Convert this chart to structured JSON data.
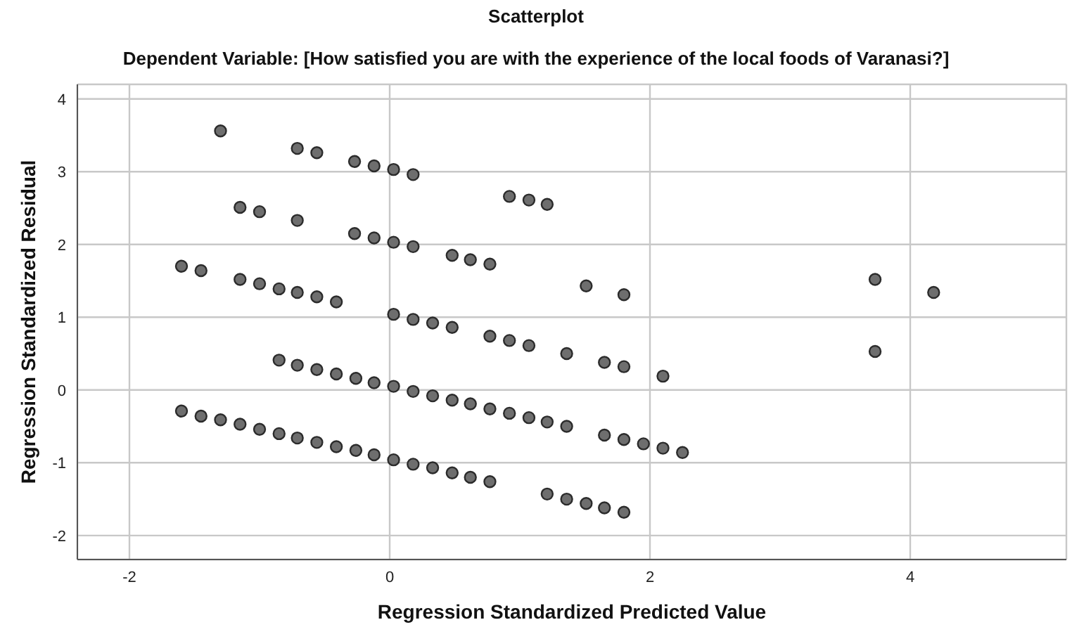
{
  "chart_data": {
    "type": "scatter",
    "title": "Scatterplot",
    "subtitle": "Dependent Variable: [How satisfied you are with the experience of the local foods of Varanasi?]",
    "xlabel": "Regression Standardized Predicted Value",
    "ylabel": "Regression Standardized Residual",
    "xlim": [
      -2.4,
      5.2
    ],
    "ylim": [
      -2.33,
      4.2
    ],
    "xticks": [
      -2,
      0,
      2,
      4
    ],
    "yticks": [
      -2,
      -1,
      0,
      1,
      2,
      3,
      4
    ],
    "grid": true,
    "legend": false,
    "marker": "circle",
    "series": [
      {
        "color": "#6e6e6e",
        "x": [
          -1.3,
          -0.71,
          -0.56,
          -0.27,
          -0.12,
          0.03,
          0.18,
          0.92,
          1.07,
          1.21,
          -1.15,
          -1.0,
          -0.71,
          -0.27,
          -0.12,
          0.03,
          0.18,
          0.48,
          0.62,
          0.77,
          -1.6,
          -1.45,
          -1.15,
          -1.0,
          -0.85,
          -0.71,
          -0.56,
          -0.41,
          0.03,
          0.18,
          0.33,
          0.48,
          0.77,
          0.92,
          1.07,
          1.36,
          1.65,
          1.8,
          2.1,
          3.73,
          1.51,
          1.8,
          3.73,
          4.18,
          -0.85,
          -0.71,
          -0.56,
          -0.41,
          -0.26,
          -0.12,
          0.03,
          0.18,
          0.33,
          0.48,
          0.62,
          0.77,
          0.92,
          1.07,
          1.21,
          1.36,
          1.65,
          1.8,
          1.95,
          2.1,
          2.25,
          -1.6,
          -1.45,
          -1.3,
          -1.15,
          -1.0,
          -0.85,
          -0.71,
          -0.56,
          -0.41,
          -0.26,
          -0.12,
          0.03,
          0.18,
          0.33,
          0.48,
          0.62,
          0.77,
          1.21,
          1.36,
          1.51,
          1.65,
          1.8
        ],
        "values": [
          3.56,
          3.32,
          3.26,
          3.14,
          3.08,
          3.03,
          2.96,
          2.66,
          2.61,
          2.55,
          2.51,
          2.45,
          2.33,
          2.15,
          2.09,
          2.03,
          1.97,
          1.85,
          1.79,
          1.73,
          1.7,
          1.64,
          1.52,
          1.46,
          1.39,
          1.34,
          1.28,
          1.21,
          1.04,
          0.97,
          0.92,
          0.86,
          0.74,
          0.68,
          0.61,
          0.5,
          0.38,
          0.32,
          0.19,
          0.53,
          1.43,
          1.31,
          1.52,
          1.34,
          0.41,
          0.34,
          0.28,
          0.22,
          0.16,
          0.1,
          0.05,
          -0.02,
          -0.08,
          -0.14,
          -0.19,
          -0.26,
          -0.32,
          -0.38,
          -0.44,
          -0.5,
          -0.62,
          -0.68,
          -0.74,
          -0.8,
          -0.86,
          -0.29,
          -0.36,
          -0.41,
          -0.47,
          -0.54,
          -0.6,
          -0.66,
          -0.72,
          -0.78,
          -0.83,
          -0.89,
          -0.96,
          -1.02,
          -1.07,
          -1.14,
          -1.2,
          -1.26,
          -1.43,
          -1.5,
          -1.56,
          -1.62,
          -1.68
        ]
      }
    ]
  }
}
